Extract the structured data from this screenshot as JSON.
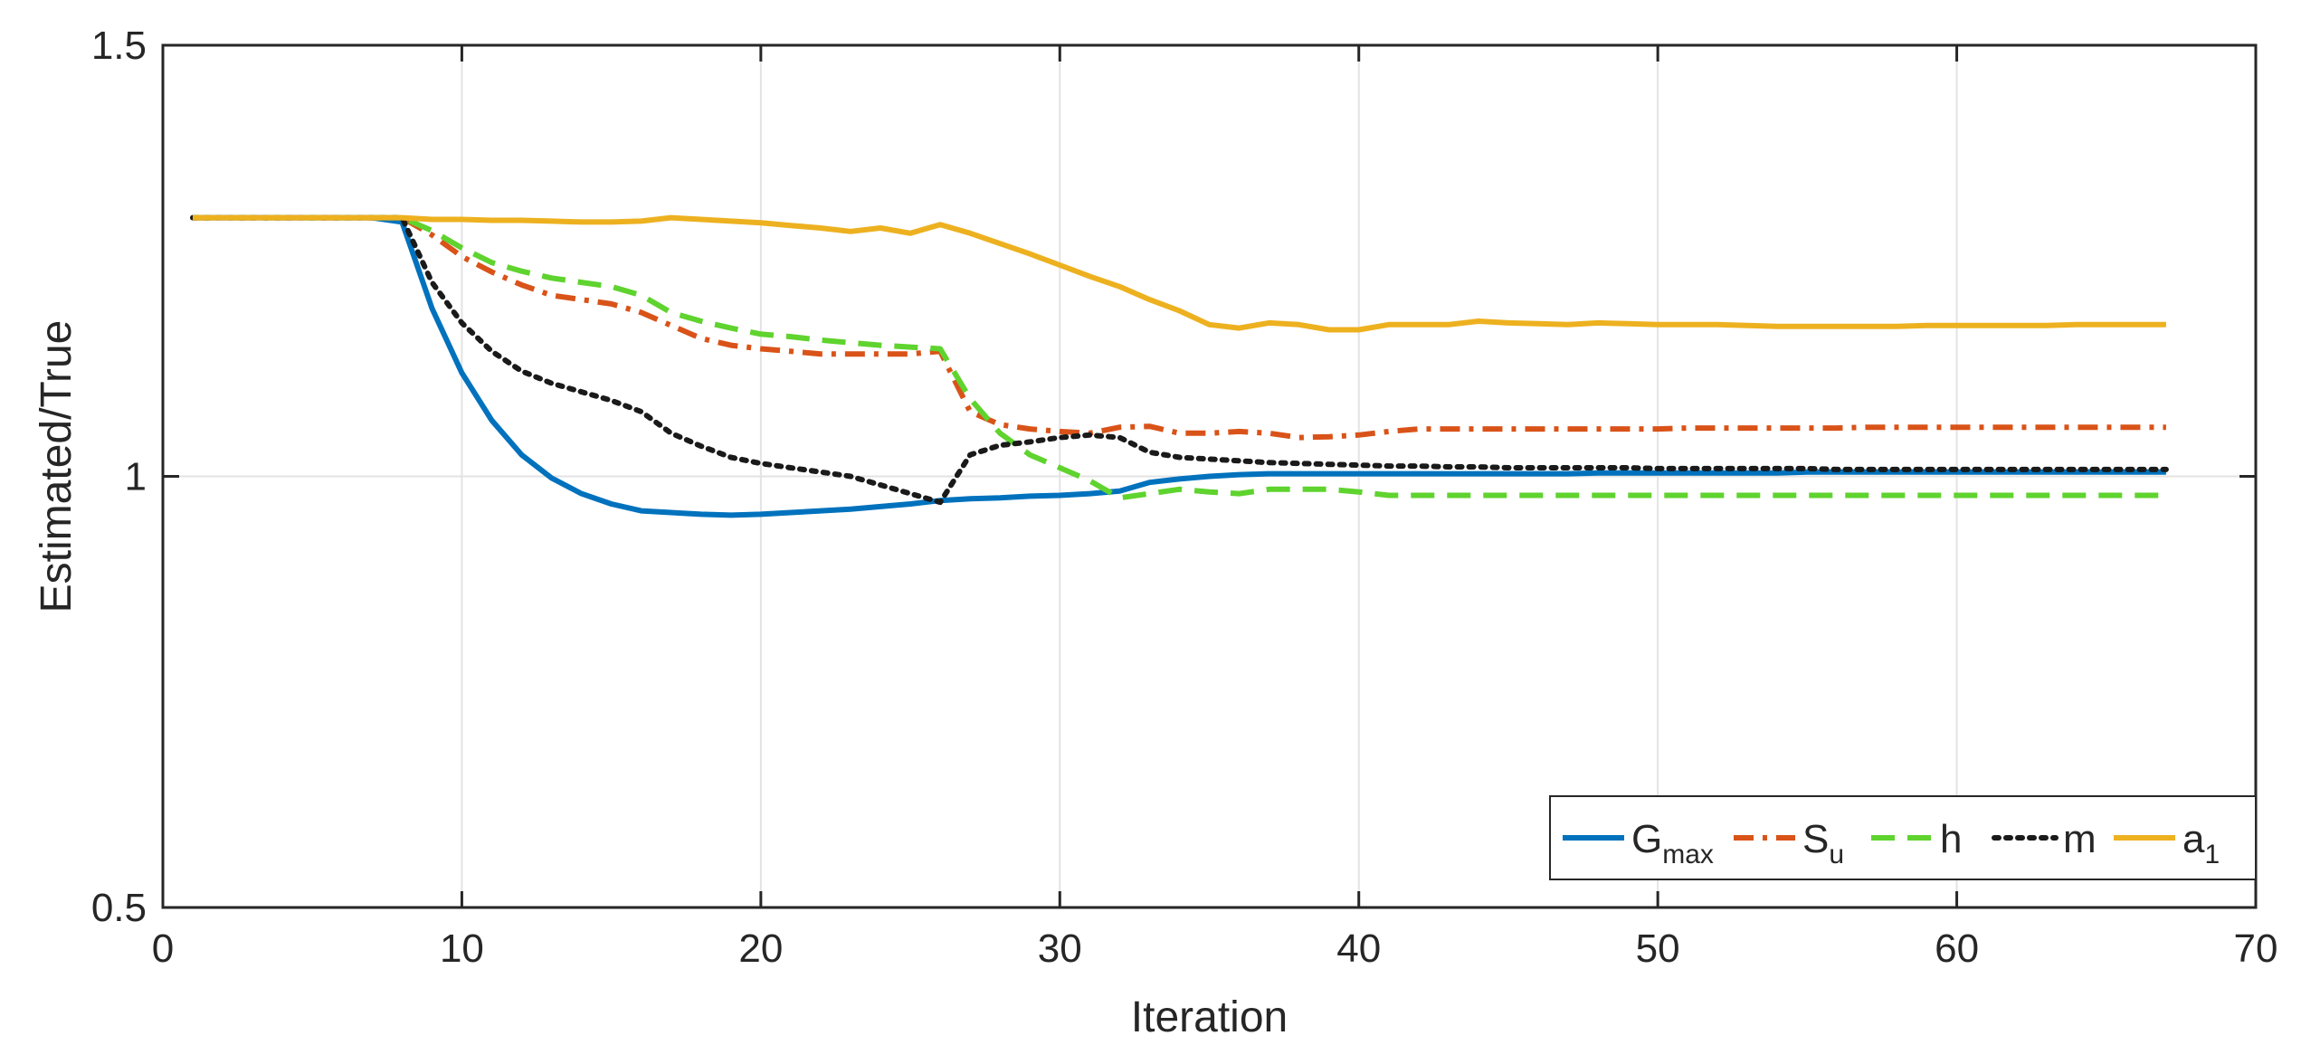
{
  "chart_data": {
    "type": "line",
    "title": "",
    "xlabel": "Iteration",
    "ylabel": "Estimated/True",
    "xlim": [
      0,
      70
    ],
    "ylim": [
      0.5,
      1.5
    ],
    "xticks": [
      0,
      10,
      20,
      30,
      40,
      50,
      60,
      70
    ],
    "yticks": [
      0.5,
      1,
      1.5
    ],
    "xtick_labels": [
      "0",
      "10",
      "20",
      "30",
      "40",
      "50",
      "60",
      "70"
    ],
    "ytick_labels": [
      "0.5",
      "1",
      "1.5"
    ],
    "grid": true,
    "legend_location": "bottom-right",
    "legend_orientation": "horizontal",
    "x": [
      1,
      2,
      3,
      4,
      5,
      6,
      7,
      8,
      9,
      10,
      11,
      12,
      13,
      14,
      15,
      16,
      17,
      18,
      19,
      20,
      21,
      22,
      23,
      24,
      25,
      26,
      27,
      28,
      29,
      30,
      31,
      32,
      33,
      34,
      35,
      36,
      37,
      38,
      39,
      40,
      41,
      42,
      43,
      44,
      45,
      46,
      47,
      48,
      49,
      50,
      51,
      52,
      53,
      54,
      55,
      56,
      57,
      58,
      59,
      60,
      61,
      62,
      63,
      64,
      65,
      66,
      67
    ],
    "series": [
      {
        "name": "Gmax",
        "label_main": "G",
        "label_sub": "max",
        "color": "#0072BD",
        "dash": "solid",
        "values": [
          1.3,
          1.3,
          1.3,
          1.3,
          1.3,
          1.3,
          1.3,
          1.295,
          1.195,
          1.12,
          1.065,
          1.025,
          0.998,
          0.98,
          0.968,
          0.96,
          0.958,
          0.956,
          0.955,
          0.956,
          0.958,
          0.96,
          0.962,
          0.965,
          0.968,
          0.972,
          0.974,
          0.975,
          0.977,
          0.978,
          0.98,
          0.983,
          0.993,
          0.997,
          1.0,
          1.002,
          1.003,
          1.003,
          1.003,
          1.003,
          1.003,
          1.003,
          1.003,
          1.003,
          1.003,
          1.003,
          1.003,
          1.004,
          1.004,
          1.004,
          1.004,
          1.004,
          1.004,
          1.004,
          1.005,
          1.005,
          1.005,
          1.005,
          1.005,
          1.005,
          1.005,
          1.005,
          1.005,
          1.005,
          1.005,
          1.005,
          1.005
        ]
      },
      {
        "name": "Su",
        "label_main": "S",
        "label_sub": "u",
        "color": "#D95319",
        "dash": "dashdot",
        "values": [
          1.3,
          1.3,
          1.3,
          1.3,
          1.3,
          1.3,
          1.3,
          1.3,
          1.28,
          1.255,
          1.237,
          1.222,
          1.21,
          1.205,
          1.2,
          1.19,
          1.175,
          1.16,
          1.152,
          1.148,
          1.145,
          1.142,
          1.142,
          1.142,
          1.142,
          1.145,
          1.075,
          1.06,
          1.055,
          1.052,
          1.05,
          1.057,
          1.058,
          1.05,
          1.05,
          1.052,
          1.05,
          1.045,
          1.046,
          1.048,
          1.052,
          1.055,
          1.055,
          1.055,
          1.055,
          1.055,
          1.055,
          1.055,
          1.055,
          1.055,
          1.056,
          1.056,
          1.056,
          1.056,
          1.056,
          1.056,
          1.057,
          1.057,
          1.057,
          1.057,
          1.057,
          1.057,
          1.057,
          1.057,
          1.057,
          1.057,
          1.057
        ]
      },
      {
        "name": "h",
        "label_main": "h",
        "label_sub": "",
        "color": "#5FD32E",
        "dash": "dashed",
        "values": [
          1.3,
          1.3,
          1.3,
          1.3,
          1.3,
          1.3,
          1.3,
          1.3,
          1.285,
          1.265,
          1.248,
          1.238,
          1.23,
          1.225,
          1.22,
          1.21,
          1.19,
          1.18,
          1.172,
          1.165,
          1.162,
          1.158,
          1.155,
          1.152,
          1.15,
          1.148,
          1.09,
          1.05,
          1.025,
          1.01,
          0.995,
          0.975,
          0.98,
          0.985,
          0.982,
          0.98,
          0.985,
          0.985,
          0.985,
          0.982,
          0.978,
          0.978,
          0.978,
          0.978,
          0.978,
          0.978,
          0.978,
          0.978,
          0.978,
          0.978,
          0.978,
          0.978,
          0.978,
          0.978,
          0.978,
          0.978,
          0.978,
          0.978,
          0.978,
          0.978,
          0.978,
          0.978,
          0.978,
          0.978,
          0.978,
          0.978,
          0.978
        ]
      },
      {
        "name": "m",
        "label_main": "m",
        "label_sub": "",
        "color": "#1a1a1a",
        "dash": "dotted",
        "values": [
          1.3,
          1.3,
          1.3,
          1.3,
          1.3,
          1.3,
          1.3,
          1.3,
          1.225,
          1.178,
          1.145,
          1.122,
          1.108,
          1.098,
          1.088,
          1.075,
          1.05,
          1.035,
          1.022,
          1.015,
          1.01,
          1.005,
          1.0,
          0.99,
          0.98,
          0.97,
          1.025,
          1.036,
          1.04,
          1.045,
          1.048,
          1.045,
          1.028,
          1.022,
          1.02,
          1.018,
          1.016,
          1.015,
          1.014,
          1.013,
          1.012,
          1.012,
          1.011,
          1.011,
          1.01,
          1.01,
          1.01,
          1.01,
          1.01,
          1.009,
          1.009,
          1.009,
          1.009,
          1.009,
          1.009,
          1.008,
          1.008,
          1.008,
          1.008,
          1.008,
          1.008,
          1.008,
          1.008,
          1.008,
          1.008,
          1.008,
          1.008
        ]
      },
      {
        "name": "a1",
        "label_main": "a",
        "label_sub": "1",
        "color": "#EDB120",
        "dash": "solid",
        "values": [
          1.3,
          1.3,
          1.3,
          1.3,
          1.3,
          1.3,
          1.3,
          1.3,
          1.298,
          1.298,
          1.297,
          1.297,
          1.296,
          1.295,
          1.295,
          1.296,
          1.3,
          1.298,
          1.296,
          1.294,
          1.291,
          1.288,
          1.284,
          1.288,
          1.282,
          1.292,
          1.282,
          1.27,
          1.258,
          1.245,
          1.232,
          1.22,
          1.205,
          1.192,
          1.176,
          1.172,
          1.178,
          1.176,
          1.17,
          1.17,
          1.176,
          1.176,
          1.176,
          1.18,
          1.178,
          1.177,
          1.176,
          1.178,
          1.177,
          1.176,
          1.176,
          1.176,
          1.175,
          1.174,
          1.174,
          1.174,
          1.174,
          1.174,
          1.175,
          1.175,
          1.175,
          1.175,
          1.175,
          1.176,
          1.176,
          1.176,
          1.176
        ]
      }
    ]
  }
}
